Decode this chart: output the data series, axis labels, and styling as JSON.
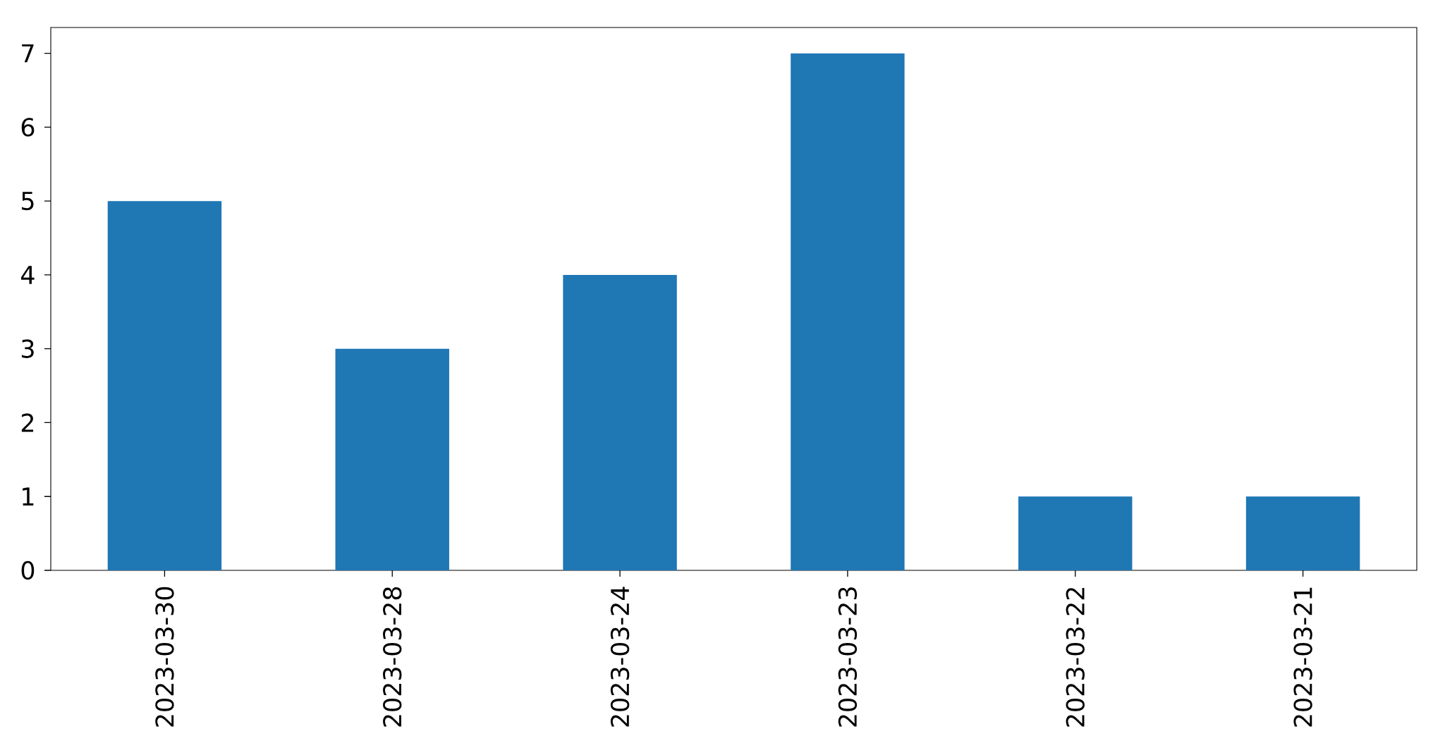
{
  "chart_data": {
    "type": "bar",
    "categories": [
      "2023-03-30",
      "2023-03-28",
      "2023-03-24",
      "2023-03-23",
      "2023-03-22",
      "2023-03-21"
    ],
    "values": [
      5,
      3,
      4,
      7,
      1,
      1
    ],
    "color": "#1f77b4",
    "ylim": [
      0,
      7.35
    ],
    "yticks": [
      0,
      1,
      2,
      3,
      4,
      5,
      6,
      7
    ],
    "grid": false
  }
}
